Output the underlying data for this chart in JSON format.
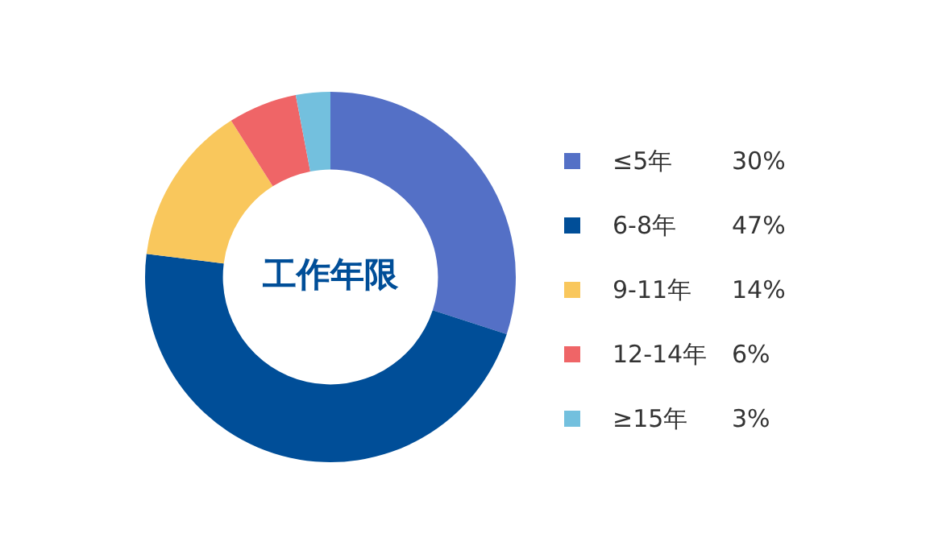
{
  "chart_data": {
    "type": "donut",
    "title": "工作年限",
    "categories": [
      "≤5年",
      "6-8年",
      "9-11年",
      "12-14年",
      "≥15年"
    ],
    "values": [
      30,
      47,
      14,
      6,
      3
    ],
    "value_labels": [
      "30%",
      "47%",
      "14%",
      "6%",
      "3%"
    ],
    "colors": [
      "#5470c6",
      "#004e98",
      "#f9c75c",
      "#ef6567",
      "#73c0de"
    ],
    "legend": "right"
  }
}
